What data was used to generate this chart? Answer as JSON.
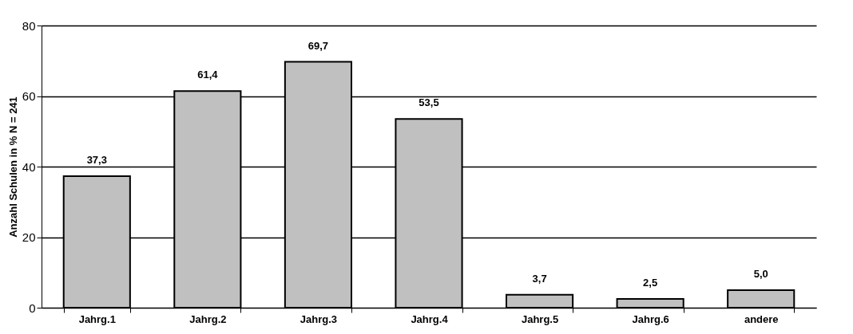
{
  "chart_data": {
    "type": "bar",
    "ylabel": "Anzahl Schulen in %     N = 241",
    "categories": [
      "Jahrg.1",
      "Jahrg.2",
      "Jahrg.3",
      "Jahrg.4",
      "Jahrg.5",
      "Jahrg.6",
      "andere"
    ],
    "values": [
      37.3,
      61.4,
      69.7,
      53.5,
      3.7,
      2.5,
      5.0
    ],
    "value_labels": [
      "37,3",
      "61,4",
      "69,7",
      "53,5",
      "3,7",
      "2,5",
      "5,0"
    ],
    "color": "#c0c0c0",
    "ylim": [
      0,
      80
    ],
    "yticks": [
      0,
      20,
      40,
      60,
      80
    ],
    "grid": "y"
  }
}
